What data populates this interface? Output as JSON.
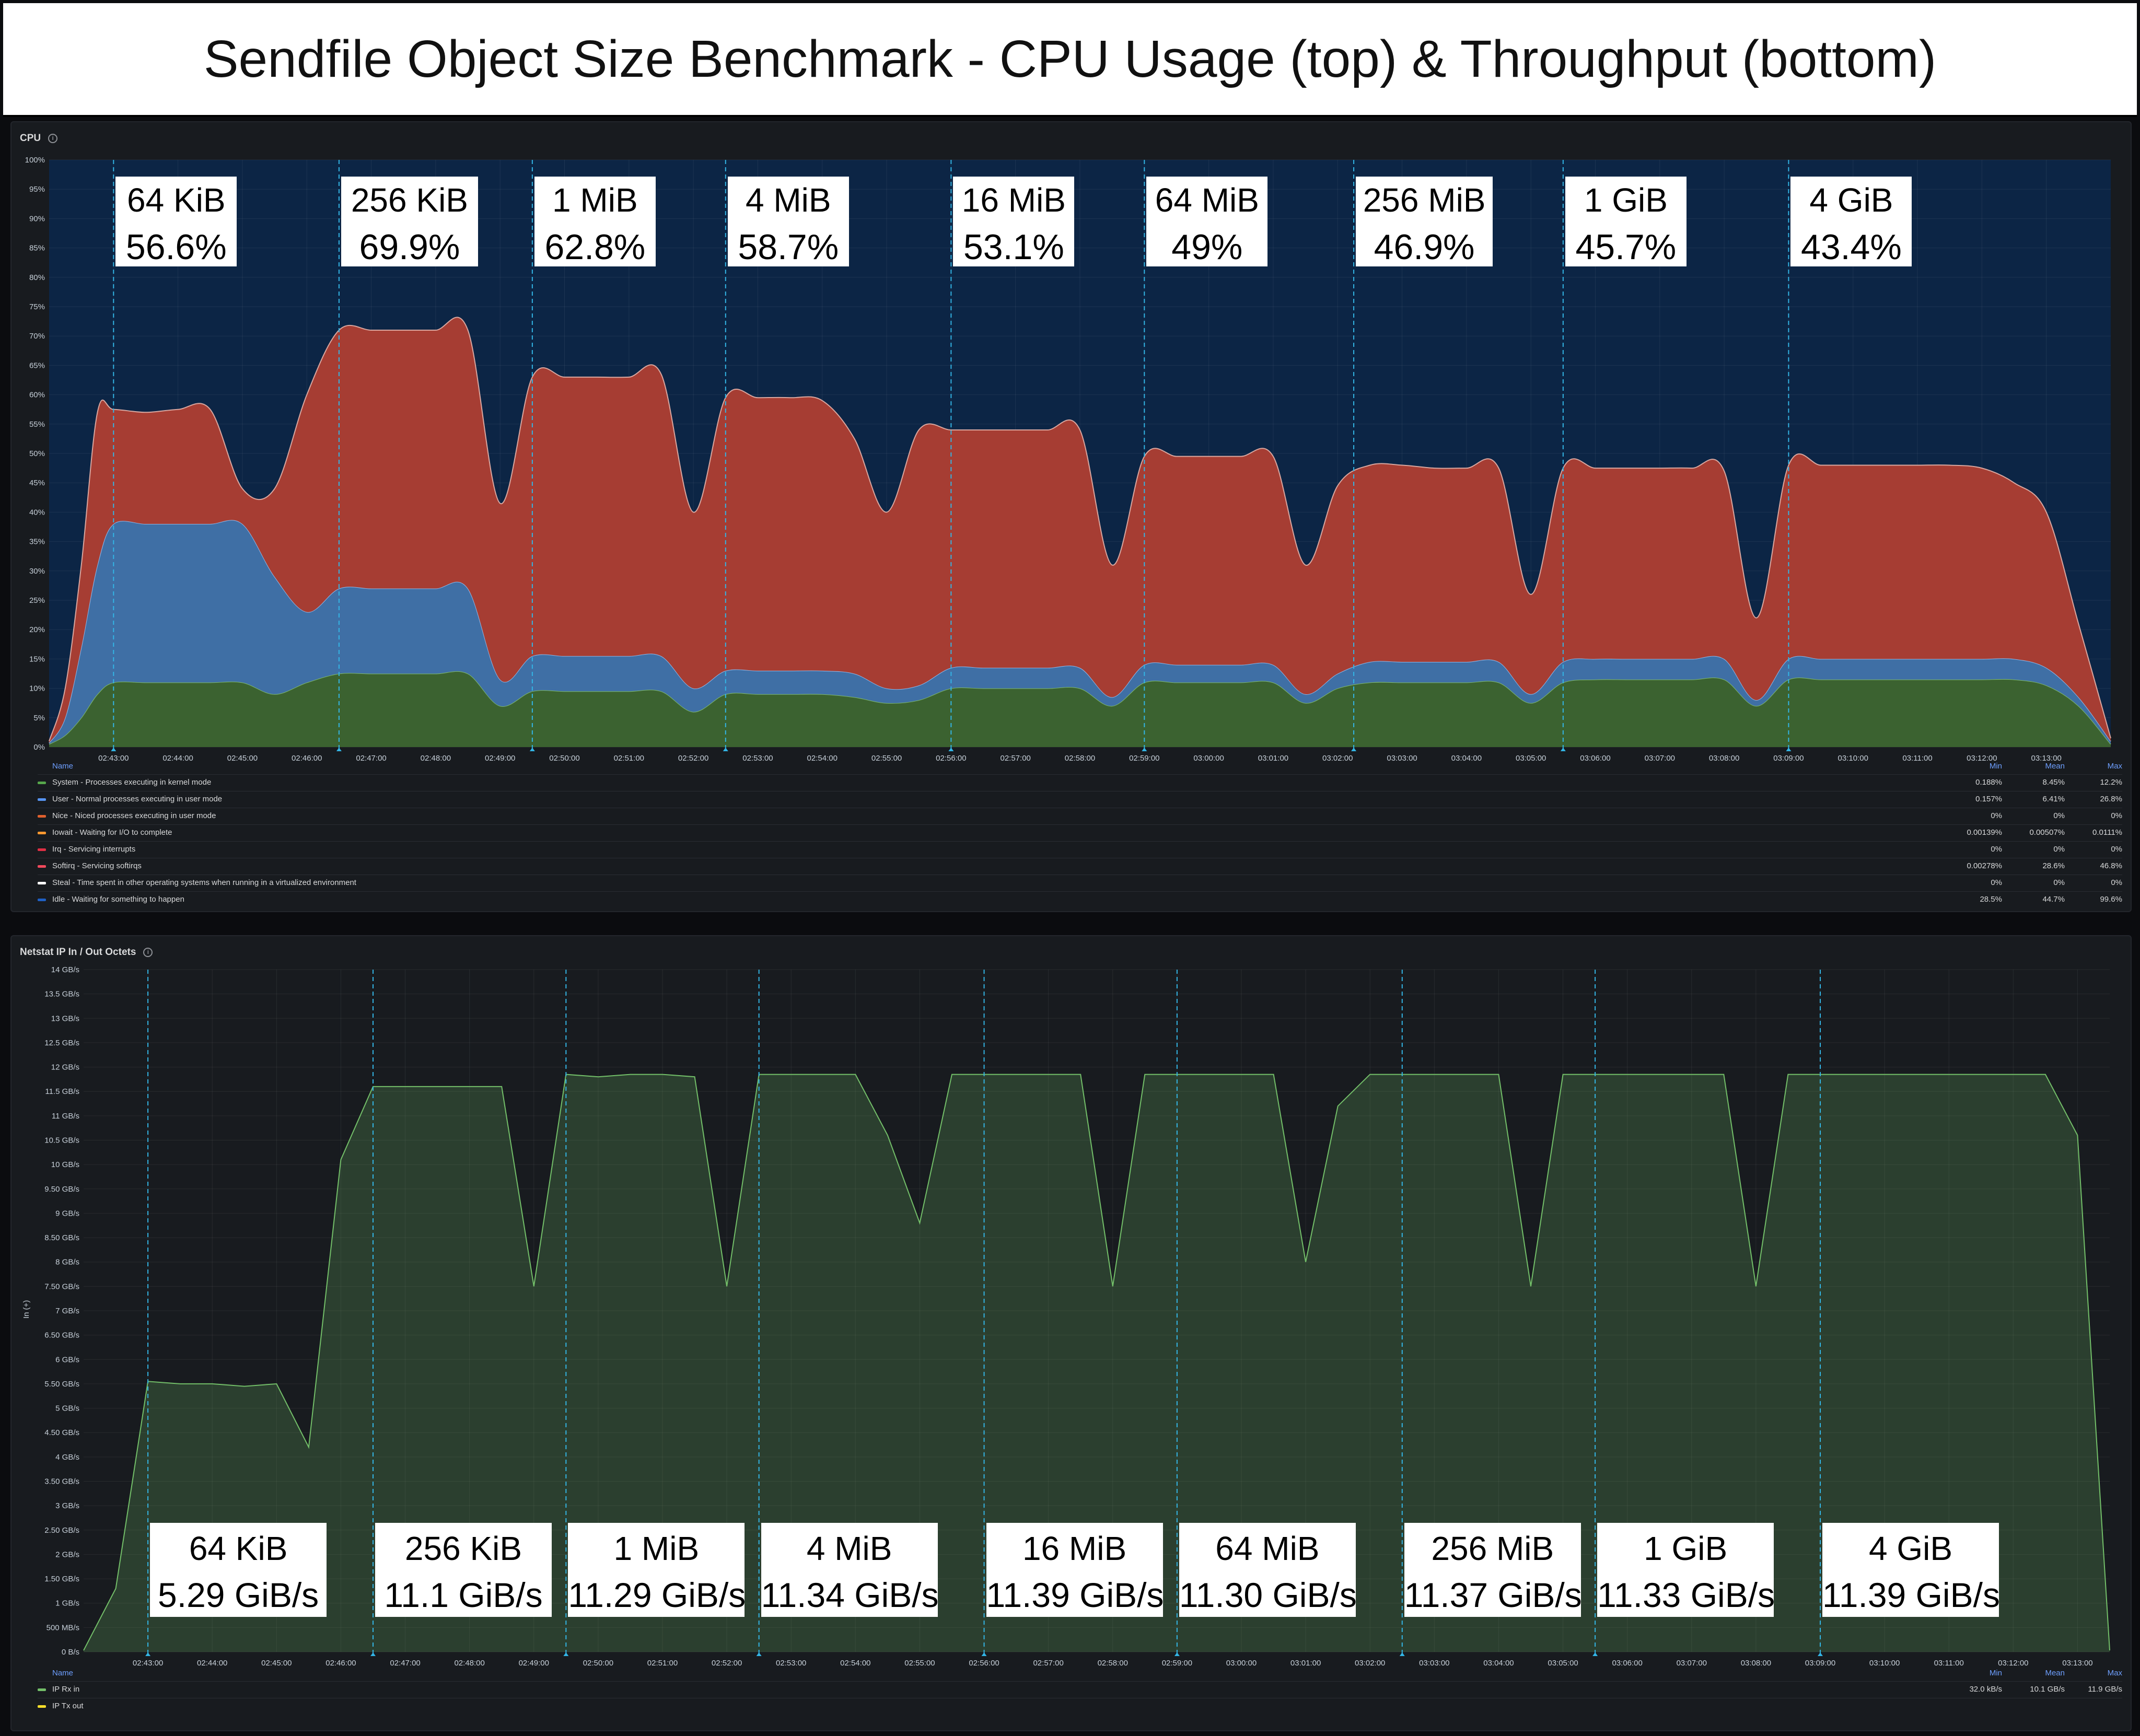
{
  "title": "Sendfile Object Size Benchmark - CPU Usage (top) & Throughput (bottom)",
  "time_ticks": [
    "02:43:00",
    "02:44:00",
    "02:45:00",
    "02:46:00",
    "02:47:00",
    "02:48:00",
    "02:49:00",
    "02:50:00",
    "02:51:00",
    "02:52:00",
    "02:53:00",
    "02:54:00",
    "02:55:00",
    "02:56:00",
    "02:57:00",
    "02:58:00",
    "02:59:00",
    "03:00:00",
    "03:01:00",
    "03:02:00",
    "03:03:00",
    "03:04:00",
    "03:05:00",
    "03:06:00",
    "03:07:00",
    "03:08:00",
    "03:09:00",
    "03:10:00",
    "03:11:00",
    "03:12:00",
    "03:13:00"
  ],
  "colors": {
    "system": "#56a64b",
    "user": "#5794f2",
    "nice": "#e0602e",
    "iowait": "#ff9830",
    "irq": "#e02f44",
    "softirq": "#f2495c",
    "steal": "#ffffff",
    "idle": "#1f60c4",
    "rx": "#73bf69",
    "tx": "#fade2a"
  },
  "chart_data": [
    {
      "type": "area",
      "title": "CPU",
      "ylim": [
        0,
        100
      ],
      "y_ticks": [
        "0%",
        "5%",
        "10%",
        "15%",
        "20%",
        "25%",
        "30%",
        "35%",
        "40%",
        "45%",
        "50%",
        "55%",
        "60%",
        "65%",
        "70%",
        "75%",
        "80%",
        "85%",
        "90%",
        "95%",
        "100%"
      ],
      "x": [
        "02:42:00",
        "02:42:15",
        "02:42:30",
        "02:42:45",
        "02:43:00",
        "02:43:30",
        "02:44:00",
        "02:44:30",
        "02:45:00",
        "02:45:30",
        "02:46:00",
        "02:46:30",
        "02:47:00",
        "02:47:30",
        "02:48:00",
        "02:48:30",
        "02:49:00",
        "02:49:30",
        "02:50:00",
        "02:50:30",
        "02:51:00",
        "02:51:30",
        "02:52:00",
        "02:52:30",
        "02:53:00",
        "02:53:30",
        "02:54:00",
        "02:54:30",
        "02:55:00",
        "02:55:30",
        "02:56:00",
        "02:56:30",
        "02:57:00",
        "02:57:30",
        "02:58:00",
        "02:58:30",
        "02:59:00",
        "02:59:30",
        "03:00:00",
        "03:00:30",
        "03:01:00",
        "03:01:30",
        "03:02:00",
        "03:02:30",
        "03:03:00",
        "03:03:30",
        "03:04:00",
        "03:04:30",
        "03:05:00",
        "03:05:30",
        "03:06:00",
        "03:06:30",
        "03:07:00",
        "03:07:30",
        "03:08:00",
        "03:08:30",
        "03:09:00",
        "03:09:30",
        "03:10:00",
        "03:10:30",
        "03:11:00",
        "03:11:30",
        "03:12:00",
        "03:12:30",
        "03:13:00",
        "03:13:30",
        "03:14:00"
      ],
      "series": [
        {
          "name": "System - Processes executing in kernel mode",
          "values": [
            0.5,
            2,
            5,
            9,
            11,
            11,
            11,
            11,
            11,
            9,
            11,
            12.5,
            12.5,
            12.5,
            12.5,
            12.5,
            7,
            9.5,
            9.5,
            9.5,
            9.5,
            9.5,
            6,
            9,
            9,
            9,
            9,
            8.5,
            7.5,
            8,
            10,
            10,
            10,
            10,
            10,
            7,
            11,
            11,
            11,
            11,
            11,
            7.5,
            10,
            11,
            11,
            11,
            11,
            11,
            7.5,
            11,
            11.5,
            11.5,
            11.5,
            11.5,
            11.5,
            7,
            11.5,
            11.5,
            11.5,
            11.5,
            11.5,
            11.5,
            11.5,
            11.5,
            10.5,
            7,
            0.5
          ]
        },
        {
          "name": "User - Normal processes executing in user mode",
          "values": [
            0.2,
            3,
            12,
            22,
            27,
            27,
            27,
            27,
            27,
            20,
            12,
            14.5,
            14.5,
            14.5,
            14.5,
            14.5,
            4.5,
            6,
            6,
            6,
            6,
            6,
            4,
            4,
            4,
            4,
            4,
            4,
            2.5,
            2.5,
            3.5,
            3.5,
            3.5,
            3.5,
            3.5,
            1.5,
            3,
            3,
            3,
            3,
            3,
            1.5,
            2.5,
            3.5,
            3.5,
            3.5,
            3.5,
            3.5,
            1.5,
            3.5,
            3.5,
            3.5,
            3.5,
            3.5,
            3.5,
            1,
            3.5,
            3.5,
            3.5,
            3.5,
            3.5,
            3.5,
            3.5,
            3.5,
            3,
            1.5,
            0.5
          ]
        },
        {
          "name": "Nice - Niced processes executing in user mode",
          "values": [
            0,
            0,
            0,
            0,
            0,
            0,
            0,
            0,
            0,
            0,
            0,
            0,
            0,
            0,
            0,
            0,
            0,
            0,
            0,
            0,
            0,
            0,
            0,
            0,
            0,
            0,
            0,
            0,
            0,
            0,
            0,
            0,
            0,
            0,
            0,
            0,
            0,
            0,
            0,
            0,
            0,
            0,
            0,
            0,
            0,
            0,
            0,
            0,
            0,
            0,
            0,
            0,
            0,
            0,
            0,
            0,
            0,
            0,
            0,
            0,
            0,
            0,
            0,
            0,
            0,
            0,
            0
          ]
        },
        {
          "name": "Softirq - Servicing softirqs",
          "values": [
            0.3,
            5,
            14,
            26,
            19.5,
            19,
            19.5,
            19.5,
            6,
            15,
            37,
            44,
            44,
            44,
            44,
            44,
            30,
            47.5,
            47.5,
            47.5,
            47.5,
            48,
            30,
            46.5,
            46.5,
            46.5,
            46,
            40,
            30,
            43.5,
            40.5,
            40.5,
            40.5,
            40.5,
            40.5,
            22.5,
            35.5,
            35.5,
            35.5,
            35.5,
            35.5,
            22,
            32,
            33.5,
            33.5,
            33,
            33,
            33,
            17,
            33,
            32.5,
            32.5,
            32.5,
            32.5,
            32,
            14,
            33,
            33,
            33,
            33,
            33,
            33,
            32.5,
            30,
            26.5,
            12.5,
            0.5
          ]
        }
      ],
      "legend": {
        "headers": [
          "Name",
          "Min",
          "Mean",
          "Max"
        ],
        "rows": [
          {
            "key": "system",
            "name": "System - Processes executing in kernel mode",
            "min": "0.188%",
            "mean": "8.45%",
            "max": "12.2%"
          },
          {
            "key": "user",
            "name": "User - Normal processes executing in user mode",
            "min": "0.157%",
            "mean": "6.41%",
            "max": "26.8%"
          },
          {
            "key": "nice",
            "name": "Nice - Niced processes executing in user mode",
            "min": "0%",
            "mean": "0%",
            "max": "0%"
          },
          {
            "key": "iowait",
            "name": "Iowait - Waiting for I/O to complete",
            "min": "0.00139%",
            "mean": "0.00507%",
            "max": "0.0111%"
          },
          {
            "key": "irq",
            "name": "Irq - Servicing interrupts",
            "min": "0%",
            "mean": "0%",
            "max": "0%"
          },
          {
            "key": "softirq",
            "name": "Softirq - Servicing softirqs",
            "min": "0.00278%",
            "mean": "28.6%",
            "max": "46.8%"
          },
          {
            "key": "steal",
            "name": "Steal - Time spent in other operating systems when running in a virtualized environment",
            "min": "0%",
            "mean": "0%",
            "max": "0%"
          },
          {
            "key": "idle",
            "name": "Idle - Waiting for something to happen",
            "min": "28.5%",
            "mean": "44.7%",
            "max": "99.6%"
          }
        ]
      },
      "annotations": [
        {
          "time": "02:43:00",
          "label": "64 KiB",
          "value": "56.6%"
        },
        {
          "time": "02:46:30",
          "label": "256 KiB",
          "value": "69.9%"
        },
        {
          "time": "02:49:30",
          "label": "1 MiB",
          "value": "62.8%"
        },
        {
          "time": "02:52:30",
          "label": "4 MiB",
          "value": "58.7%"
        },
        {
          "time": "02:56:00",
          "label": "16 MiB",
          "value": "53.1%"
        },
        {
          "time": "02:59:00",
          "label": "64 MiB",
          "value": "49%"
        },
        {
          "time": "03:02:15",
          "label": "256 MiB",
          "value": "46.9%"
        },
        {
          "time": "03:05:30",
          "label": "1 GiB",
          "value": "45.7%"
        },
        {
          "time": "03:09:00",
          "label": "4 GiB",
          "value": "43.4%"
        }
      ]
    },
    {
      "type": "area",
      "title": "Netstat IP In / Out Octets",
      "ylabel": "In (+)",
      "ylim": [
        0,
        14
      ],
      "y_ticks": [
        "0 B/s",
        "500 MB/s",
        "1 GB/s",
        "1.50 GB/s",
        "2 GB/s",
        "2.50 GB/s",
        "3 GB/s",
        "3.50 GB/s",
        "4 GB/s",
        "4.50 GB/s",
        "5 GB/s",
        "5.50 GB/s",
        "6 GB/s",
        "6.50 GB/s",
        "7 GB/s",
        "7.50 GB/s",
        "8 GB/s",
        "8.50 GB/s",
        "9 GB/s",
        "9.50 GB/s",
        "10 GB/s",
        "10.5 GB/s",
        "11 GB/s",
        "11.5 GB/s",
        "12 GB/s",
        "12.5 GB/s",
        "13 GB/s",
        "13.5 GB/s",
        "14 GB/s"
      ],
      "x": [
        "02:42:00",
        "02:42:30",
        "02:43:00",
        "02:43:30",
        "02:44:00",
        "02:44:30",
        "02:45:00",
        "02:45:30",
        "02:46:00",
        "02:46:30",
        "02:47:00",
        "02:47:30",
        "02:48:00",
        "02:48:30",
        "02:49:00",
        "02:49:30",
        "02:50:00",
        "02:50:30",
        "02:51:00",
        "02:51:30",
        "02:52:00",
        "02:52:30",
        "02:53:00",
        "02:53:30",
        "02:54:00",
        "02:54:30",
        "02:55:00",
        "02:55:30",
        "02:56:00",
        "02:56:30",
        "02:57:00",
        "02:57:30",
        "02:58:00",
        "02:58:30",
        "02:59:00",
        "02:59:30",
        "03:00:00",
        "03:00:30",
        "03:01:00",
        "03:01:30",
        "03:02:00",
        "03:02:30",
        "03:03:00",
        "03:03:30",
        "03:04:00",
        "03:04:30",
        "03:05:00",
        "03:05:30",
        "03:06:00",
        "03:06:30",
        "03:07:00",
        "03:07:30",
        "03:08:00",
        "03:08:30",
        "03:09:00",
        "03:09:30",
        "03:10:00",
        "03:10:30",
        "03:11:00",
        "03:11:30",
        "03:12:00",
        "03:12:30",
        "03:13:00",
        "03:13:30"
      ],
      "series": [
        {
          "name": "IP Rx in",
          "values": [
            0.03,
            1.3,
            5.55,
            5.5,
            5.5,
            5.45,
            5.5,
            4.2,
            10.1,
            11.6,
            11.6,
            11.6,
            11.6,
            11.6,
            7.5,
            11.85,
            11.8,
            11.85,
            11.85,
            11.8,
            7.5,
            11.85,
            11.85,
            11.85,
            11.85,
            10.6,
            8.8,
            11.85,
            11.85,
            11.85,
            11.85,
            11.85,
            7.5,
            11.85,
            11.85,
            11.85,
            11.85,
            11.85,
            8.0,
            11.2,
            11.85,
            11.85,
            11.85,
            11.85,
            11.85,
            7.5,
            11.85,
            11.85,
            11.85,
            11.85,
            11.85,
            11.85,
            7.5,
            11.85,
            11.85,
            11.85,
            11.85,
            11.85,
            11.85,
            11.85,
            11.85,
            11.85,
            10.6,
            0.03
          ]
        },
        {
          "name": "IP Tx out",
          "values": [
            0,
            0,
            0,
            0,
            0,
            0,
            0,
            0,
            0,
            0,
            0,
            0,
            0,
            0,
            0,
            0,
            0,
            0,
            0,
            0,
            0,
            0,
            0,
            0,
            0,
            0,
            0,
            0,
            0,
            0,
            0,
            0,
            0,
            0,
            0,
            0,
            0,
            0,
            0,
            0,
            0,
            0,
            0,
            0,
            0,
            0,
            0,
            0,
            0,
            0,
            0,
            0,
            0,
            0,
            0,
            0,
            0,
            0,
            0,
            0,
            0,
            0,
            0,
            0
          ]
        }
      ],
      "legend": {
        "headers": [
          "Name",
          "Min",
          "Mean",
          "Max"
        ],
        "rows": [
          {
            "key": "rx",
            "name": "IP Rx in",
            "min": "32.0 kB/s",
            "mean": "10.1 GB/s",
            "max": "11.9 GB/s"
          },
          {
            "key": "tx",
            "name": "IP Tx out",
            "min": "",
            "mean": "",
            "max": ""
          }
        ]
      },
      "annotations": [
        {
          "time": "02:43:00",
          "label": "64 KiB",
          "value": "5.29 GiB/s"
        },
        {
          "time": "02:46:30",
          "label": "256 KiB",
          "value": "11.1 GiB/s"
        },
        {
          "time": "02:49:30",
          "label": "1 MiB",
          "value": "11.29 GiB/s"
        },
        {
          "time": "02:52:30",
          "label": "4 MiB",
          "value": "11.34 GiB/s"
        },
        {
          "time": "02:56:00",
          "label": "16 MiB",
          "value": "11.39 GiB/s"
        },
        {
          "time": "02:59:00",
          "label": "64 MiB",
          "value": "11.30 GiB/s"
        },
        {
          "time": "03:02:30",
          "label": "256 MiB",
          "value": "11.37 GiB/s"
        },
        {
          "time": "03:05:30",
          "label": "1 GiB",
          "value": "11.33 GiB/s"
        },
        {
          "time": "03:09:00",
          "label": "4 GiB",
          "value": "11.39 GiB/s"
        }
      ]
    }
  ]
}
